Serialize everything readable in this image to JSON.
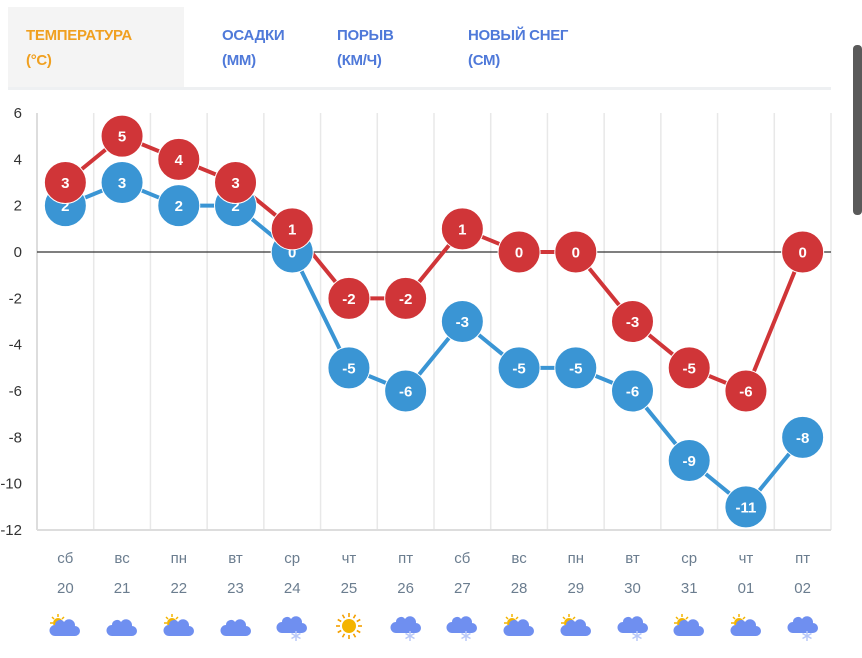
{
  "tabs": [
    {
      "label": "ТЕМПЕРАТУРА",
      "unit": "(°C)",
      "active": true
    },
    {
      "label": "ОСАДКИ",
      "unit": "(ММ)",
      "active": false
    },
    {
      "label": "ПОРЫВ",
      "unit": "(КМ/Ч)",
      "active": false
    },
    {
      "label": "НОВЫЙ СНЕГ",
      "unit": "(СМ)",
      "active": false
    }
  ],
  "chart_data": {
    "type": "line",
    "title": "",
    "ylim": [
      -12,
      6
    ],
    "yticks": [
      6,
      4,
      2,
      0,
      -2,
      -4,
      -6,
      -8,
      -10,
      -12
    ],
    "categories": [
      "сб",
      "вс",
      "пн",
      "вт",
      "ср",
      "чт",
      "пт",
      "сб",
      "вс",
      "пн",
      "вт",
      "ср",
      "чт",
      "пт"
    ],
    "dates": [
      "20",
      "21",
      "22",
      "23",
      "24",
      "25",
      "26",
      "27",
      "28",
      "29",
      "30",
      "31",
      "01",
      "02"
    ],
    "icons": [
      "partly-cloudy",
      "cloudy",
      "partly-cloudy",
      "cloudy",
      "cloud-snow",
      "sunny",
      "cloud-snow",
      "cloud-snow",
      "partly-sunny",
      "partly-cloudy",
      "cloud-snow",
      "partly-sunny",
      "partly-sunny",
      "cloud-snow"
    ],
    "series": [
      {
        "name": "min",
        "color": "#3a95d4",
        "values": [
          2,
          3,
          2,
          2,
          0,
          -5,
          -6,
          -3,
          -5,
          -5,
          -6,
          -9,
          -11,
          -8
        ]
      },
      {
        "name": "max",
        "color": "#d03538",
        "values": [
          3,
          5,
          4,
          3,
          1,
          -2,
          -2,
          1,
          0,
          0,
          -3,
          -5,
          -6,
          0
        ]
      }
    ]
  }
}
